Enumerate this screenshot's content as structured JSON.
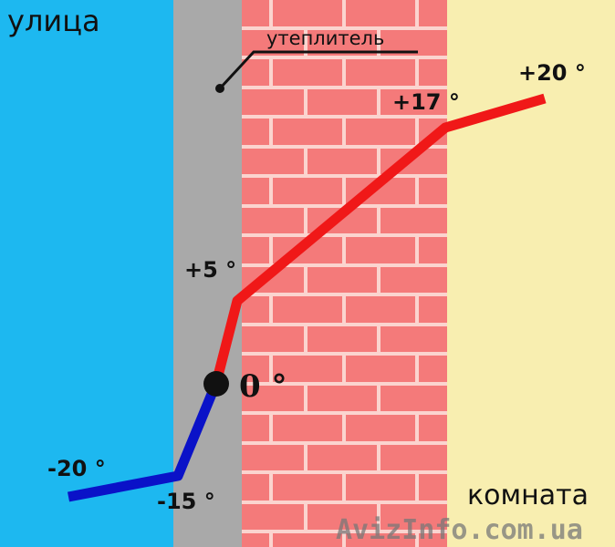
{
  "zones": {
    "outside": "улица",
    "insulation": "утеплитель",
    "room": "комната"
  },
  "temperatures": {
    "outside_air": "-20 °",
    "outside_surface": "-15 °",
    "insulation_inner": "0 °",
    "brick_outer": "+5 °",
    "brick_inner": "+17 °",
    "room_air": "+20 °"
  },
  "watermark": "AvizInfo.com.ua",
  "colors": {
    "outside": "#1db8f0",
    "insulation": "#a9a9a9",
    "brick": "#f47a7a",
    "mortar": "#fbd4cf",
    "room": "#f8eeb0",
    "cold_line": "#0a12c8",
    "warm_line": "#f01818"
  }
}
